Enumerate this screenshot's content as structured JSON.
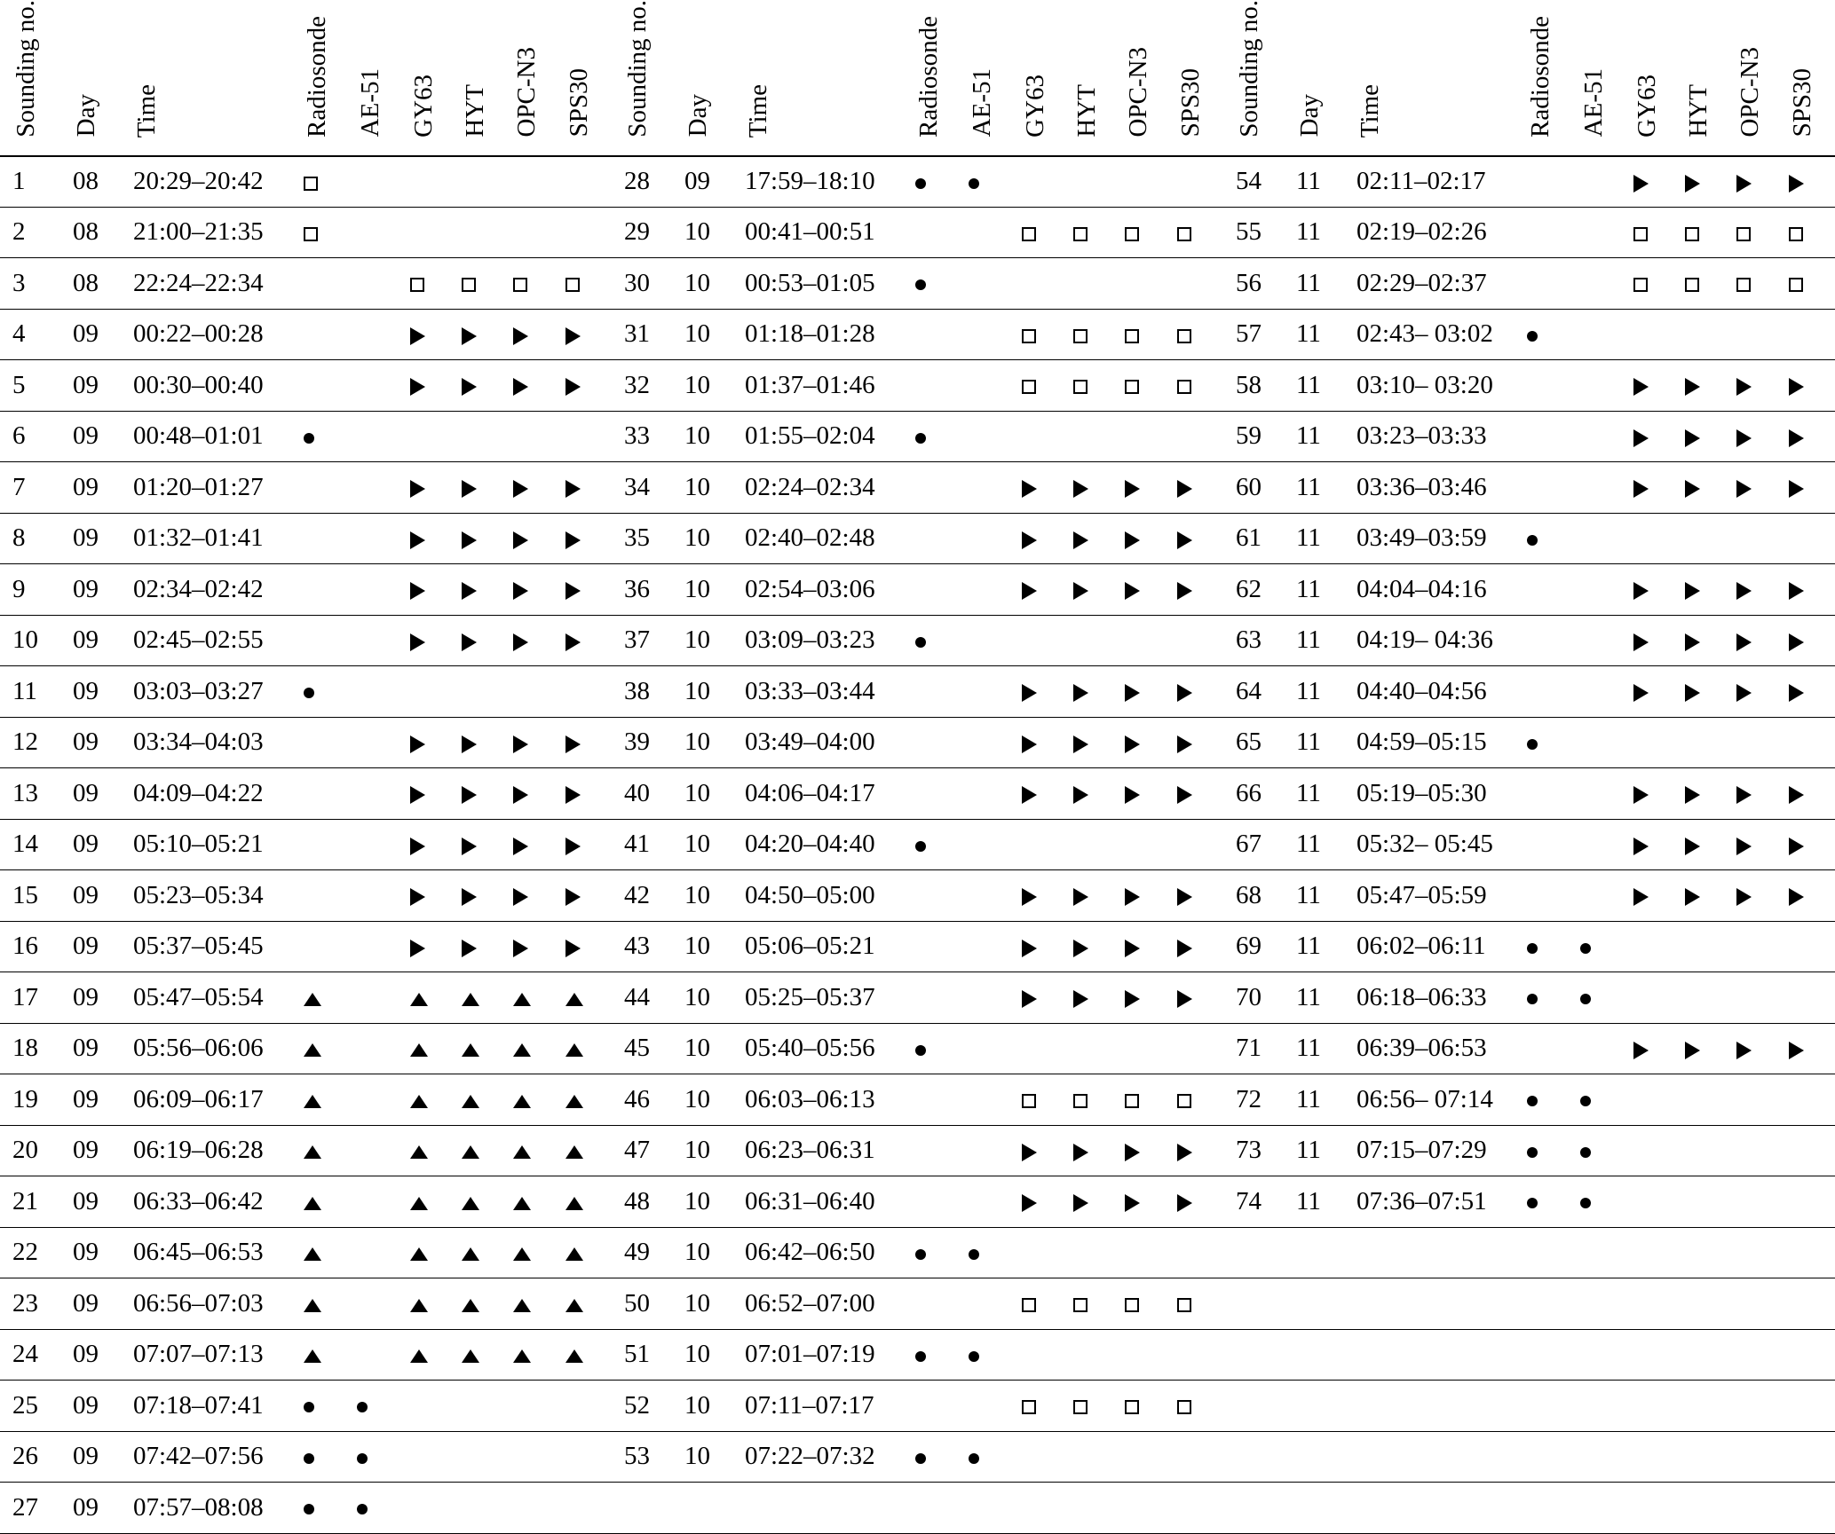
{
  "table": {
    "column_headers": [
      "Sounding no.",
      "Day",
      "Time",
      "Radiosonde",
      "AE-51",
      "GY63",
      "HYT",
      "OPC-N3",
      "SPS30"
    ],
    "symbols": {
      "sq": "open-square-mark",
      "ci": "filled-circle-mark",
      "tr": "filled-right-triangle-mark",
      "tu": "filled-up-triangle-mark"
    },
    "colors": {
      "text": "#000000",
      "rules": "#000000",
      "background": "#ffffff"
    },
    "panels": [
      [
        {
          "no": "1",
          "day": "08",
          "time": "20:29–20:42",
          "marks": [
            "sq",
            "",
            "",
            "",
            "",
            ""
          ]
        },
        {
          "no": "2",
          "day": "08",
          "time": "21:00–21:35",
          "marks": [
            "sq",
            "",
            "",
            "",
            "",
            ""
          ]
        },
        {
          "no": "3",
          "day": "08",
          "time": "22:24–22:34",
          "marks": [
            "",
            "",
            "sq",
            "sq",
            "sq",
            "sq"
          ]
        },
        {
          "no": "4",
          "day": "09",
          "time": "00:22–00:28",
          "marks": [
            "",
            "",
            "tr",
            "tr",
            "tr",
            "tr"
          ]
        },
        {
          "no": "5",
          "day": "09",
          "time": "00:30–00:40",
          "marks": [
            "",
            "",
            "tr",
            "tr",
            "tr",
            "tr"
          ]
        },
        {
          "no": "6",
          "day": "09",
          "time": "00:48–01:01",
          "marks": [
            "ci",
            "",
            "",
            "",
            "",
            ""
          ]
        },
        {
          "no": "7",
          "day": "09",
          "time": "01:20–01:27",
          "marks": [
            "",
            "",
            "tr",
            "tr",
            "tr",
            "tr"
          ]
        },
        {
          "no": "8",
          "day": "09",
          "time": "01:32–01:41",
          "marks": [
            "",
            "",
            "tr",
            "tr",
            "tr",
            "tr"
          ]
        },
        {
          "no": "9",
          "day": "09",
          "time": "02:34–02:42",
          "marks": [
            "",
            "",
            "tr",
            "tr",
            "tr",
            "tr"
          ]
        },
        {
          "no": "10",
          "day": "09",
          "time": "02:45–02:55",
          "marks": [
            "",
            "",
            "tr",
            "tr",
            "tr",
            "tr"
          ]
        },
        {
          "no": "11",
          "day": "09",
          "time": "03:03–03:27",
          "marks": [
            "ci",
            "",
            "",
            "",
            "",
            ""
          ]
        },
        {
          "no": "12",
          "day": "09",
          "time": "03:34–04:03",
          "marks": [
            "",
            "",
            "tr",
            "tr",
            "tr",
            "tr"
          ]
        },
        {
          "no": "13",
          "day": "09",
          "time": "04:09–04:22",
          "marks": [
            "",
            "",
            "tr",
            "tr",
            "tr",
            "tr"
          ]
        },
        {
          "no": "14",
          "day": "09",
          "time": "05:10–05:21",
          "marks": [
            "",
            "",
            "tr",
            "tr",
            "tr",
            "tr"
          ]
        },
        {
          "no": "15",
          "day": "09",
          "time": "05:23–05:34",
          "marks": [
            "",
            "",
            "tr",
            "tr",
            "tr",
            "tr"
          ]
        },
        {
          "no": "16",
          "day": "09",
          "time": "05:37–05:45",
          "marks": [
            "",
            "",
            "tr",
            "tr",
            "tr",
            "tr"
          ]
        },
        {
          "no": "17",
          "day": "09",
          "time": "05:47–05:54",
          "marks": [
            "tu",
            "",
            "tu",
            "tu",
            "tu",
            "tu"
          ]
        },
        {
          "no": "18",
          "day": "09",
          "time": "05:56–06:06",
          "marks": [
            "tu",
            "",
            "tu",
            "tu",
            "tu",
            "tu"
          ]
        },
        {
          "no": "19",
          "day": "09",
          "time": "06:09–06:17",
          "marks": [
            "tu",
            "",
            "tu",
            "tu",
            "tu",
            "tu"
          ]
        },
        {
          "no": "20",
          "day": "09",
          "time": "06:19–06:28",
          "marks": [
            "tu",
            "",
            "tu",
            "tu",
            "tu",
            "tu"
          ]
        },
        {
          "no": "21",
          "day": "09",
          "time": "06:33–06:42",
          "marks": [
            "tu",
            "",
            "tu",
            "tu",
            "tu",
            "tu"
          ]
        },
        {
          "no": "22",
          "day": "09",
          "time": "06:45–06:53",
          "marks": [
            "tu",
            "",
            "tu",
            "tu",
            "tu",
            "tu"
          ]
        },
        {
          "no": "23",
          "day": "09",
          "time": "06:56–07:03",
          "marks": [
            "tu",
            "",
            "tu",
            "tu",
            "tu",
            "tu"
          ]
        },
        {
          "no": "24",
          "day": "09",
          "time": "07:07–07:13",
          "marks": [
            "tu",
            "",
            "tu",
            "tu",
            "tu",
            "tu"
          ]
        },
        {
          "no": "25",
          "day": "09",
          "time": "07:18–07:41",
          "marks": [
            "ci",
            "ci",
            "",
            "",
            "",
            ""
          ]
        },
        {
          "no": "26",
          "day": "09",
          "time": "07:42–07:56",
          "marks": [
            "ci",
            "ci",
            "",
            "",
            "",
            ""
          ]
        },
        {
          "no": "27",
          "day": "09",
          "time": "07:57–08:08",
          "marks": [
            "ci",
            "ci",
            "",
            "",
            "",
            ""
          ]
        }
      ],
      [
        {
          "no": "28",
          "day": "09",
          "time": "17:59–18:10",
          "marks": [
            "ci",
            "ci",
            "",
            "",
            "",
            ""
          ]
        },
        {
          "no": "29",
          "day": "10",
          "time": "00:41–00:51",
          "marks": [
            "",
            "",
            "sq",
            "sq",
            "sq",
            "sq"
          ]
        },
        {
          "no": "30",
          "day": "10",
          "time": "00:53–01:05",
          "marks": [
            "ci",
            "",
            "",
            "",
            "",
            ""
          ]
        },
        {
          "no": "31",
          "day": "10",
          "time": "01:18–01:28",
          "marks": [
            "",
            "",
            "sq",
            "sq",
            "sq",
            "sq"
          ]
        },
        {
          "no": "32",
          "day": "10",
          "time": "01:37–01:46",
          "marks": [
            "",
            "",
            "sq",
            "sq",
            "sq",
            "sq"
          ]
        },
        {
          "no": "33",
          "day": "10",
          "time": "01:55–02:04",
          "marks": [
            "ci",
            "",
            "",
            "",
            "",
            ""
          ]
        },
        {
          "no": "34",
          "day": "10",
          "time": "02:24–02:34",
          "marks": [
            "",
            "",
            "tr",
            "tr",
            "tr",
            "tr"
          ]
        },
        {
          "no": "35",
          "day": "10",
          "time": "02:40–02:48",
          "marks": [
            "",
            "",
            "tr",
            "tr",
            "tr",
            "tr"
          ]
        },
        {
          "no": "36",
          "day": "10",
          "time": "02:54–03:06",
          "marks": [
            "",
            "",
            "tr",
            "tr",
            "tr",
            "tr"
          ]
        },
        {
          "no": "37",
          "day": "10",
          "time": "03:09–03:23",
          "marks": [
            "ci",
            "",
            "",
            "",
            "",
            ""
          ]
        },
        {
          "no": "38",
          "day": "10",
          "time": "03:33–03:44",
          "marks": [
            "",
            "",
            "tr",
            "tr",
            "tr",
            "tr"
          ]
        },
        {
          "no": "39",
          "day": "10",
          "time": "03:49–04:00",
          "marks": [
            "",
            "",
            "tr",
            "tr",
            "tr",
            "tr"
          ]
        },
        {
          "no": "40",
          "day": "10",
          "time": "04:06–04:17",
          "marks": [
            "",
            "",
            "tr",
            "tr",
            "tr",
            "tr"
          ]
        },
        {
          "no": "41",
          "day": "10",
          "time": "04:20–04:40",
          "marks": [
            "ci",
            "",
            "",
            "",
            "",
            ""
          ]
        },
        {
          "no": "42",
          "day": "10",
          "time": "04:50–05:00",
          "marks": [
            "",
            "",
            "tr",
            "tr",
            "tr",
            "tr"
          ]
        },
        {
          "no": "43",
          "day": "10",
          "time": "05:06–05:21",
          "marks": [
            "",
            "",
            "tr",
            "tr",
            "tr",
            "tr"
          ]
        },
        {
          "no": "44",
          "day": "10",
          "time": "05:25–05:37",
          "marks": [
            "",
            "",
            "tr",
            "tr",
            "tr",
            "tr"
          ]
        },
        {
          "no": "45",
          "day": "10",
          "time": "05:40–05:56",
          "marks": [
            "ci",
            "",
            "",
            "",
            "",
            ""
          ]
        },
        {
          "no": "46",
          "day": "10",
          "time": "06:03–06:13",
          "marks": [
            "",
            "",
            "sq",
            "sq",
            "sq",
            "sq"
          ]
        },
        {
          "no": "47",
          "day": "10",
          "time": "06:23–06:31",
          "marks": [
            "",
            "",
            "tr",
            "tr",
            "tr",
            "tr"
          ]
        },
        {
          "no": "48",
          "day": "10",
          "time": "06:31–06:40",
          "marks": [
            "",
            "",
            "tr",
            "tr",
            "tr",
            "tr"
          ]
        },
        {
          "no": "49",
          "day": "10",
          "time": "06:42–06:50",
          "marks": [
            "ci",
            "ci",
            "",
            "",
            "",
            ""
          ]
        },
        {
          "no": "50",
          "day": "10",
          "time": "06:52–07:00",
          "marks": [
            "",
            "",
            "sq",
            "sq",
            "sq",
            "sq"
          ]
        },
        {
          "no": "51",
          "day": "10",
          "time": "07:01–07:19",
          "marks": [
            "ci",
            "ci",
            "",
            "",
            "",
            ""
          ]
        },
        {
          "no": "52",
          "day": "10",
          "time": "07:11–07:17",
          "marks": [
            "",
            "",
            "sq",
            "sq",
            "sq",
            "sq"
          ]
        },
        {
          "no": "53",
          "day": "10",
          "time": "07:22–07:32",
          "marks": [
            "ci",
            "ci",
            "",
            "",
            "",
            ""
          ]
        }
      ],
      [
        {
          "no": "54",
          "day": "11",
          "time": "02:11–02:17",
          "marks": [
            "",
            "",
            "tr",
            "tr",
            "tr",
            "tr"
          ]
        },
        {
          "no": "55",
          "day": "11",
          "time": "02:19–02:26",
          "marks": [
            "",
            "",
            "sq",
            "sq",
            "sq",
            "sq"
          ]
        },
        {
          "no": "56",
          "day": "11",
          "time": "02:29–02:37",
          "marks": [
            "",
            "",
            "sq",
            "sq",
            "sq",
            "sq"
          ]
        },
        {
          "no": "57",
          "day": "11",
          "time": "02:43– 03:02",
          "marks": [
            "ci",
            "",
            "",
            "",
            "",
            ""
          ]
        },
        {
          "no": "58",
          "day": "11",
          "time": "03:10– 03:20",
          "marks": [
            "",
            "",
            "tr",
            "tr",
            "tr",
            "tr"
          ]
        },
        {
          "no": "59",
          "day": "11",
          "time": "03:23–03:33",
          "marks": [
            "",
            "",
            "tr",
            "tr",
            "tr",
            "tr"
          ]
        },
        {
          "no": "60",
          "day": "11",
          "time": "03:36–03:46",
          "marks": [
            "",
            "",
            "tr",
            "tr",
            "tr",
            "tr"
          ]
        },
        {
          "no": "61",
          "day": "11",
          "time": "03:49–03:59",
          "marks": [
            "ci",
            "",
            "",
            "",
            "",
            ""
          ]
        },
        {
          "no": "62",
          "day": "11",
          "time": "04:04–04:16",
          "marks": [
            "",
            "",
            "tr",
            "tr",
            "tr",
            "tr"
          ]
        },
        {
          "no": "63",
          "day": "11",
          "time": "04:19– 04:36",
          "marks": [
            "",
            "",
            "tr",
            "tr",
            "tr",
            "tr"
          ]
        },
        {
          "no": "64",
          "day": "11",
          "time": "04:40–04:56",
          "marks": [
            "",
            "",
            "tr",
            "tr",
            "tr",
            "tr"
          ]
        },
        {
          "no": "65",
          "day": "11",
          "time": "04:59–05:15",
          "marks": [
            "ci",
            "",
            "",
            "",
            "",
            ""
          ]
        },
        {
          "no": "66",
          "day": "11",
          "time": "05:19–05:30",
          "marks": [
            "",
            "",
            "tr",
            "tr",
            "tr",
            "tr"
          ]
        },
        {
          "no": "67",
          "day": "11",
          "time": "05:32– 05:45",
          "marks": [
            "",
            "",
            "tr",
            "tr",
            "tr",
            "tr"
          ]
        },
        {
          "no": "68",
          "day": "11",
          "time": "05:47–05:59",
          "marks": [
            "",
            "",
            "tr",
            "tr",
            "tr",
            "tr"
          ]
        },
        {
          "no": "69",
          "day": "11",
          "time": "06:02–06:11",
          "marks": [
            "ci",
            "ci",
            "",
            "",
            "",
            ""
          ]
        },
        {
          "no": "70",
          "day": "11",
          "time": "06:18–06:33",
          "marks": [
            "ci",
            "ci",
            "",
            "",
            "",
            ""
          ]
        },
        {
          "no": "71",
          "day": "11",
          "time": "06:39–06:53",
          "marks": [
            "",
            "",
            "tr",
            "tr",
            "tr",
            "tr"
          ]
        },
        {
          "no": "72",
          "day": "11",
          "time": "06:56– 07:14",
          "marks": [
            "ci",
            "ci",
            "",
            "",
            "",
            ""
          ]
        },
        {
          "no": "73",
          "day": "11",
          "time": "07:15–07:29",
          "marks": [
            "ci",
            "ci",
            "",
            "",
            "",
            ""
          ]
        },
        {
          "no": "74",
          "day": "11",
          "time": "07:36–07:51",
          "marks": [
            "ci",
            "ci",
            "",
            "",
            "",
            ""
          ]
        }
      ]
    ]
  }
}
